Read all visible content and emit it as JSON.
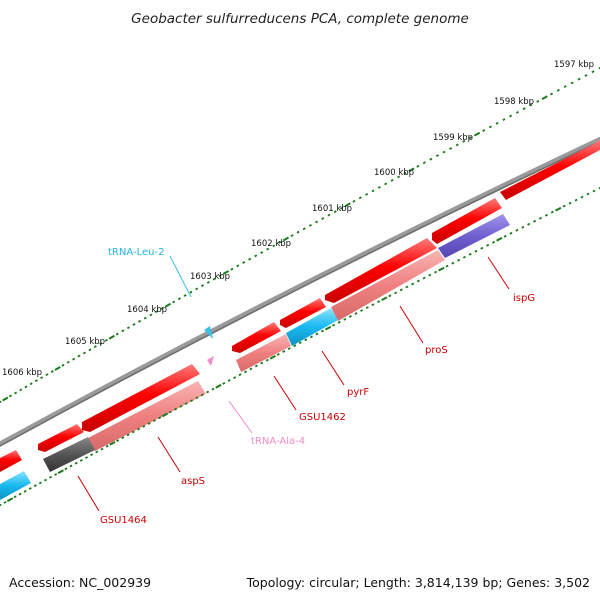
{
  "title": "Geobacter sulfurreducens PCA, complete genome",
  "footer": {
    "accession": "Accession: NC_002939",
    "topology": "Topology: circular; Length: 3,814,139 bp; Genes: 3,502"
  },
  "colors": {
    "backbone": "#8c8c8c",
    "tick": "#1a7a1a",
    "cds": "#ff0000",
    "cds_pink": "#f08080",
    "trna_blue": "#3cc0e6",
    "trna_pink": "#f08cc8",
    "pyrF": "#18b8f0",
    "ispG": "#6f60d0",
    "grey_gene": "#555555",
    "label_red": "#cc0000",
    "label_cyan": "#22b4dc",
    "label_pink": "#f08cc8"
  },
  "ticks": [
    {
      "label": "1597 kbp"
    },
    {
      "label": "1598 kbp"
    },
    {
      "label": "1599 kbp"
    },
    {
      "label": "1600 kbp"
    },
    {
      "label": "1601 kbp"
    },
    {
      "label": "1602 kbp"
    },
    {
      "label": "1603 kbp"
    },
    {
      "label": "1604 kbp"
    },
    {
      "label": "1605 kbp"
    },
    {
      "label": "1606 kbp"
    }
  ],
  "gene_labels": [
    {
      "id": "trna-leu-2",
      "text": "tRNA-Leu-2",
      "color": "label_cyan"
    },
    {
      "id": "trna-ala-4",
      "text": "tRNA-Ala-4",
      "color": "label_pink"
    },
    {
      "id": "ispg",
      "text": "ispG",
      "color": "label_red"
    },
    {
      "id": "pros",
      "text": "proS",
      "color": "label_red"
    },
    {
      "id": "pyrf",
      "text": "pyrF",
      "color": "label_red"
    },
    {
      "id": "gsu1462",
      "text": "GSU1462",
      "color": "label_red"
    },
    {
      "id": "asps",
      "text": "aspS",
      "color": "label_red"
    },
    {
      "id": "gsu1464",
      "text": "GSU1464",
      "color": "label_red"
    }
  ]
}
